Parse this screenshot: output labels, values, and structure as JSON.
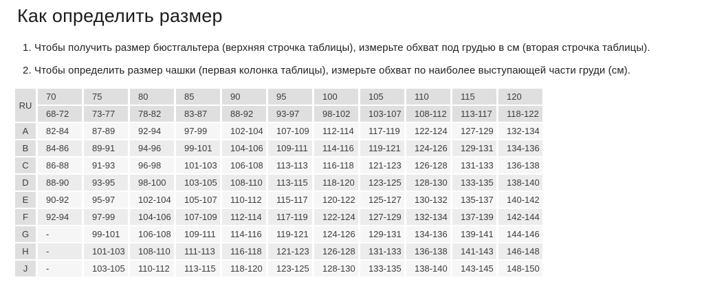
{
  "page": {
    "title": "Как определить размер",
    "instructions": [
      "1. Чтобы получить размер бюстгальтера (верхняя строчка таблицы), измерьте обхват под грудью в см (вторая строчка таблицы).",
      "2. Чтобы определить размер чашки (первая колонка таблицы), измерьте обхват по наиболее выступающей части груди (см)."
    ]
  },
  "size_table": {
    "corner_label": "RU",
    "band_sizes": [
      "70",
      "75",
      "80",
      "85",
      "90",
      "95",
      "100",
      "105",
      "110",
      "115",
      "120"
    ],
    "underbust_ranges": [
      "68-72",
      "73-77",
      "78-82",
      "83-87",
      "88-92",
      "93-97",
      "98-102",
      "103-107",
      "108-112",
      "113-117",
      "118-122"
    ],
    "cup_rows": [
      {
        "cup": "A",
        "values": [
          "82-84",
          "87-89",
          "92-94",
          "97-99",
          "102-104",
          "107-109",
          "112-114",
          "117-119",
          "122-124",
          "127-129",
          "132-134"
        ]
      },
      {
        "cup": "B",
        "values": [
          "84-86",
          "89-91",
          "94-96",
          "99-101",
          "104-106",
          "109-111",
          "114-116",
          "119-121",
          "124-126",
          "129-131",
          "134-136"
        ]
      },
      {
        "cup": "C",
        "values": [
          "86-88",
          "91-93",
          "96-98",
          "101-103",
          "106-108",
          "113-113",
          "116-118",
          "121-123",
          "126-128",
          "131-133",
          "136-138"
        ]
      },
      {
        "cup": "D",
        "values": [
          "88-90",
          "93-95",
          "98-100",
          "103-105",
          "108-110",
          "113-115",
          "118-120",
          "123-125",
          "128-130",
          "133-135",
          "138-140"
        ]
      },
      {
        "cup": "E",
        "values": [
          "90-92",
          "95-97",
          "102-104",
          "105-107",
          "110-112",
          "115-117",
          "120-122",
          "125-127",
          "130-132",
          "135-137",
          "140-142"
        ]
      },
      {
        "cup": "F",
        "values": [
          "92-94",
          "97-99",
          "104-106",
          "107-109",
          "112-114",
          "117-119",
          "122-124",
          "127-129",
          "132-134",
          "137-139",
          "142-144"
        ]
      },
      {
        "cup": "G",
        "values": [
          "-",
          "99-101",
          "106-108",
          "109-111",
          "114-116",
          "119-121",
          "124-126",
          "129-131",
          "134-136",
          "139-141",
          "144-146"
        ]
      },
      {
        "cup": "H",
        "values": [
          "-",
          "101-103",
          "108-110",
          "111-113",
          "116-118",
          "121-123",
          "126-128",
          "131-133",
          "136-138",
          "141-143",
          "146-148"
        ]
      },
      {
        "cup": "J",
        "values": [
          "-",
          "103-105",
          "110-112",
          "113-115",
          "118-120",
          "123-125",
          "128-130",
          "133-135",
          "138-140",
          "143-145",
          "148-150"
        ]
      }
    ]
  },
  "colors": {
    "header_bg": "#dfdfdf",
    "row_light_bg": "#f6f6f6",
    "row_dark_bg": "#ececec",
    "cell_text": "#3c3c3c",
    "title_text": "#1c1c1c"
  }
}
